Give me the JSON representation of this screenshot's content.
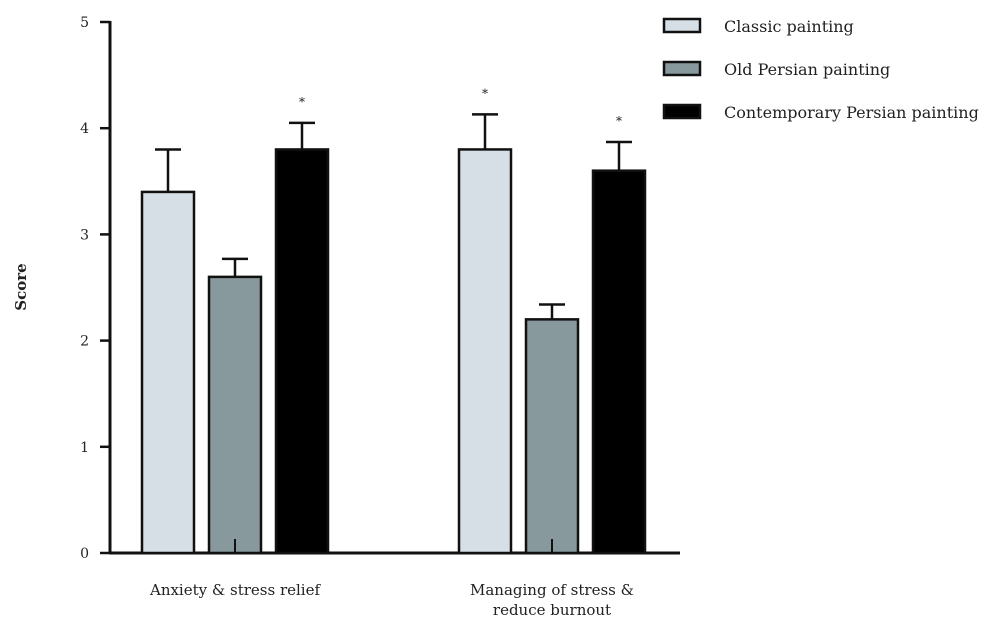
{
  "chart_data": {
    "type": "bar",
    "title": "",
    "xlabel": "",
    "ylabel": "Score",
    "ylim": [
      0,
      5
    ],
    "yticks": [
      0,
      1,
      2,
      3,
      4,
      5
    ],
    "categories": [
      [
        "Anxiety & stress relief"
      ],
      [
        "Managing of stress &",
        "reduce burnout"
      ]
    ],
    "series": [
      {
        "name": "Classic painting",
        "color": "#d6dfe5",
        "values": [
          3.4,
          3.8
        ],
        "errors": [
          0.4,
          0.33
        ],
        "significant": [
          false,
          true
        ]
      },
      {
        "name": "Old Persian painting",
        "color": "#88999d",
        "values": [
          2.6,
          2.2
        ],
        "errors": [
          0.17,
          0.14
        ],
        "significant": [
          false,
          false
        ]
      },
      {
        "name": "Contemporary Persian painting",
        "color": "#000000",
        "values": [
          3.8,
          3.6
        ],
        "errors": [
          0.25,
          0.27
        ],
        "significant": [
          true,
          true
        ]
      }
    ],
    "significance_marker": "*",
    "legend_position": "top-right",
    "grid": false
  }
}
